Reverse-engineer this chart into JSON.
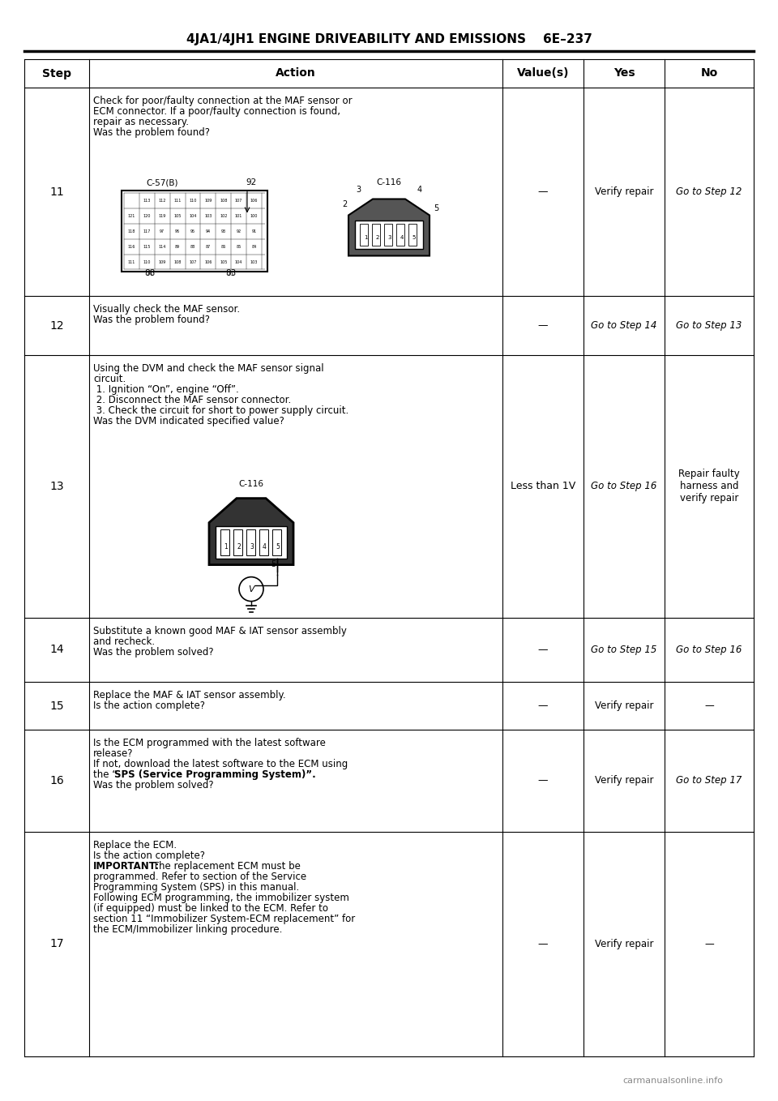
{
  "title": "4JA1/4JH1 ENGINE DRIVEABILITY AND EMISSIONS    6E–237",
  "bg_color": "#ffffff",
  "header_color": "#ffffff",
  "table_line_color": "#000000",
  "col_headers": [
    "Step",
    "Action",
    "Value(s)",
    "Yes",
    "No"
  ],
  "rows": [
    {
      "step": "11",
      "action_lines": [
        "Check for poor/faulty connection at the MAF sensor or",
        "ECM connector. If a poor/faulty connection is found,",
        "repair as necessary.",
        "Was the problem found?"
      ],
      "has_diagram_11": true,
      "values": "—",
      "yes": "Verify repair",
      "no": "Go to Step 12"
    },
    {
      "step": "12",
      "action_lines": [
        "Visually check the MAF sensor.",
        "Was the problem found?"
      ],
      "values": "—",
      "yes": "Go to Step 14",
      "no": "Go to Step 13"
    },
    {
      "step": "13",
      "action_lines": [
        "Using the DVM and check the MAF sensor signal",
        "circuit.",
        " 1. Ignition “On”, engine “Off”.",
        " 2. Disconnect the MAF sensor connector.",
        " 3. Check the circuit for short to power supply circuit.",
        "Was the DVM indicated specified value?"
      ],
      "has_diagram_13": true,
      "values": "Less than 1V",
      "yes": "Go to Step 16",
      "no": "Repair faulty\nharness and\nverify repair"
    },
    {
      "step": "14",
      "action_lines": [
        "Substitute a known good MAF & IAT sensor assembly",
        "and recheck.",
        "Was the problem solved?"
      ],
      "values": "—",
      "yes": "Go to Step 15",
      "no": "Go to Step 16"
    },
    {
      "step": "15",
      "action_lines": [
        "Replace the MAF & IAT sensor assembly.",
        "Is the action complete?"
      ],
      "values": "—",
      "yes": "Verify repair",
      "no": "—"
    },
    {
      "step": "16",
      "action_lines": [
        "Is the ECM programmed with the latest software",
        "release?",
        "If not, download the latest software to the ECM using",
        "the “SPS (Service Programming System)”.",
        "Was the problem solved?"
      ],
      "has_bold": [
        3
      ],
      "values": "—",
      "yes": "Verify repair",
      "no": "Go to Step 17"
    },
    {
      "step": "17",
      "action_lines": [
        "Replace the ECM.",
        "Is the action complete?",
        "IMPORTANT:  The replacement ECM must be",
        "programmed. Refer to section of the Service",
        "Programming System (SPS) in this manual.",
        "Following ECM programming, the immobilizer system",
        "(if equipped) must be linked to the ECM. Refer to",
        "section 11 “Immobilizer System-ECM replacement” for",
        "the ECM/Immobilizer linking procedure."
      ],
      "has_important": true,
      "values": "—",
      "yes": "Verify repair",
      "no": "—"
    }
  ],
  "footer_text": "carmanualsonline.info"
}
